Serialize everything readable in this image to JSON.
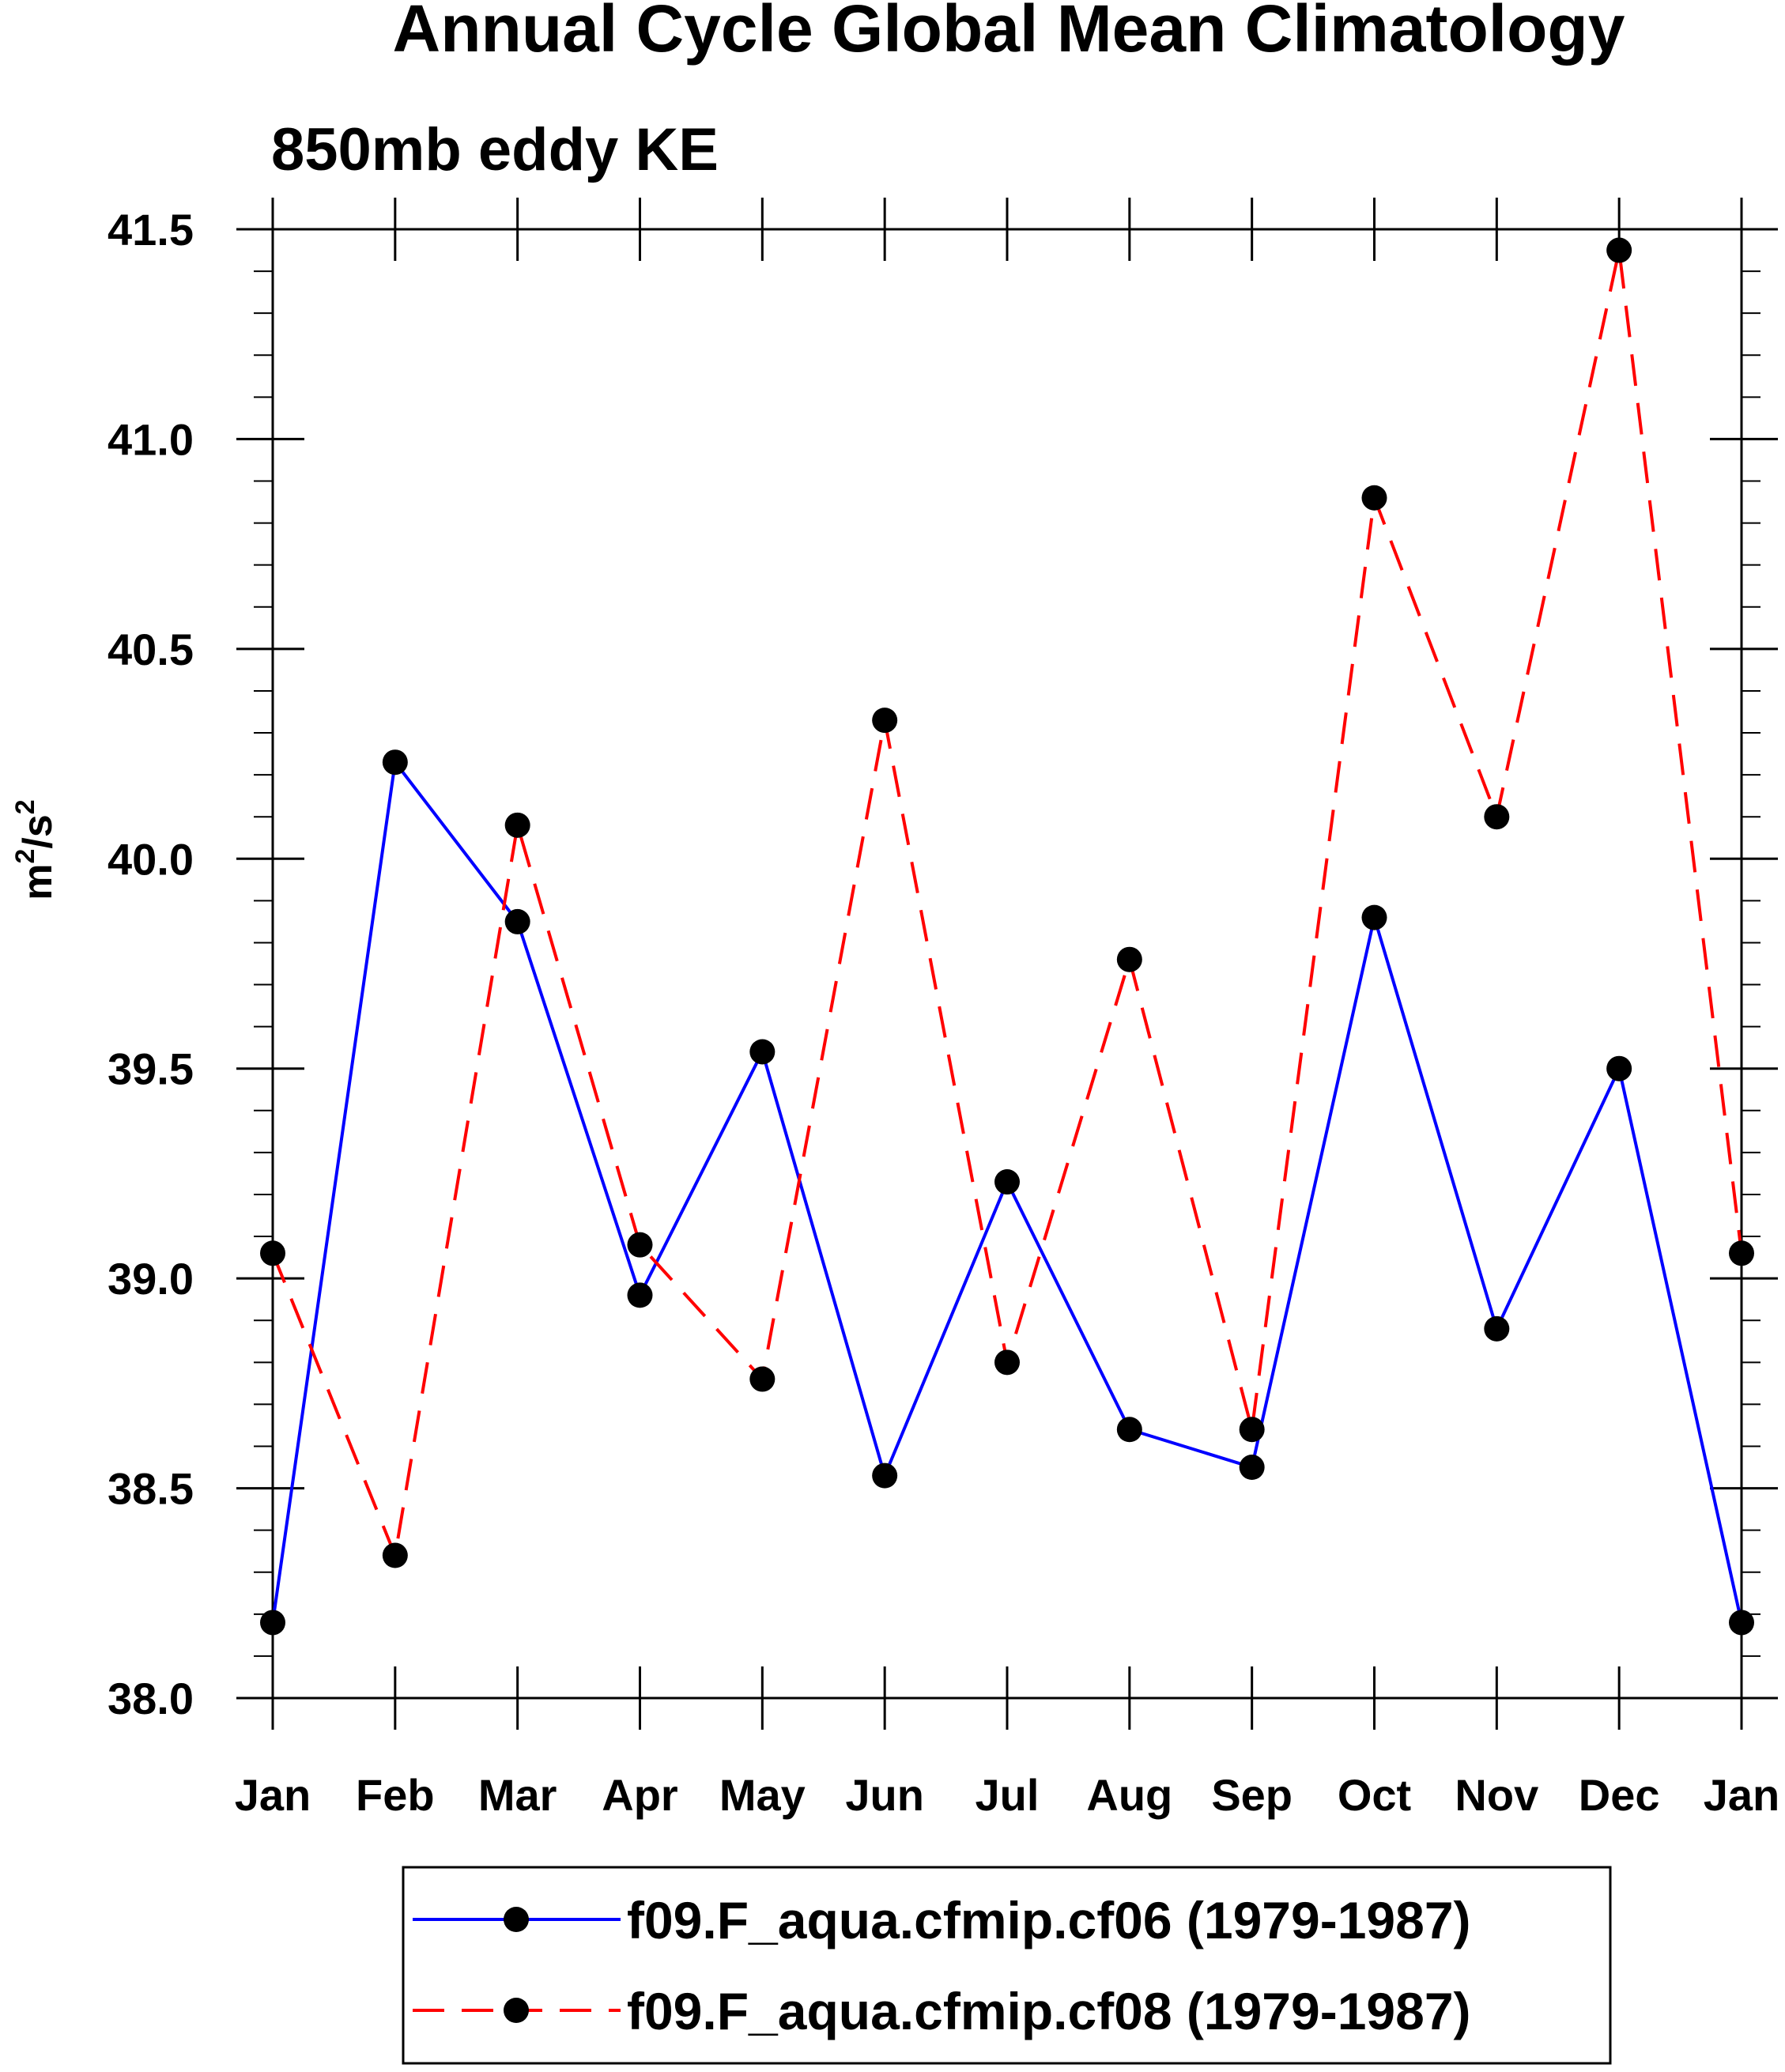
{
  "chart_data": {
    "type": "line",
    "title": "Annual Cycle Global Mean Climatology",
    "subtitle": "850mb eddy KE",
    "ylabel": "m²/s²",
    "ylabel_parts": {
      "base1": "m",
      "sup1": "2",
      "mid": "/s",
      "sup2": "2"
    },
    "xlabel": "",
    "categories": [
      "Jan",
      "Feb",
      "Mar",
      "Apr",
      "May",
      "Jun",
      "Jul",
      "Aug",
      "Sep",
      "Oct",
      "Nov",
      "Dec",
      "Jan"
    ],
    "ylim": [
      38.0,
      41.5
    ],
    "y_ticks": [
      "38.0",
      "38.5",
      "39.0",
      "39.5",
      "40.0",
      "40.5",
      "41.0",
      "41.5"
    ],
    "y_minor_step": 0.1,
    "grid": false,
    "legend_position": "bottom",
    "series": [
      {
        "name": "f09.F_aqua.cfmip.cf06 (1979-1987)",
        "color": "#0000ff",
        "dash": "solid",
        "marker": "filled-circle",
        "values": [
          38.18,
          40.23,
          39.85,
          38.96,
          39.54,
          38.53,
          39.23,
          38.64,
          38.55,
          39.86,
          38.88,
          39.5,
          38.18
        ]
      },
      {
        "name": "f09.F_aqua.cfmip.cf08 (1979-1987)",
        "color": "#ff0000",
        "dash": "dashed",
        "marker": "filled-circle",
        "values": [
          39.06,
          38.34,
          40.08,
          39.08,
          38.76,
          40.33,
          38.8,
          39.76,
          38.64,
          40.86,
          40.1,
          41.45,
          39.06
        ]
      }
    ]
  }
}
